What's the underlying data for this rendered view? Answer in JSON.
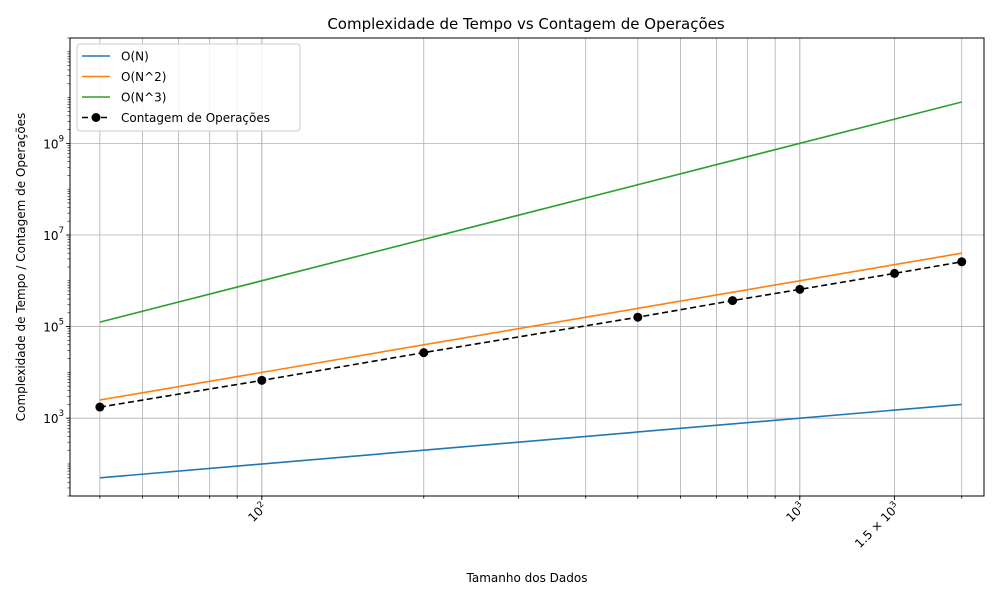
{
  "chart_data": {
    "type": "line",
    "title": "Complexidade de Tempo vs Contagem de Operações",
    "xlabel": "Tamanho dos Dados",
    "ylabel": "Complexidade de Tempo / Contagem de Operações",
    "xscale": "log",
    "yscale": "log",
    "xlim": [
      44,
      2200
    ],
    "ylim": [
      20,
      200000000000
    ],
    "grid": true,
    "legend_position": "top-left",
    "x_ticks": [
      {
        "value": 100,
        "base": "10",
        "exp": "2"
      },
      {
        "value": 1000,
        "base": "10",
        "exp": "3"
      },
      {
        "value": 1500,
        "base": "1.5 × 10",
        "exp": "3"
      }
    ],
    "y_ticks": [
      {
        "value": 1000,
        "base": "10",
        "exp": "3"
      },
      {
        "value": 100000,
        "base": "10",
        "exp": "5"
      },
      {
        "value": 10000000,
        "base": "10",
        "exp": "7"
      },
      {
        "value": 1000000000,
        "base": "10",
        "exp": "9"
      }
    ],
    "series": [
      {
        "name": "O(N)",
        "color": "#1f77b4",
        "style": "solid",
        "marker": "none",
        "x": [
          50,
          2000
        ],
        "y": [
          50,
          2000
        ]
      },
      {
        "name": "O(N^2)",
        "color": "#ff7f0e",
        "style": "solid",
        "marker": "none",
        "x": [
          50,
          2000
        ],
        "y": [
          2500,
          4000000
        ]
      },
      {
        "name": "O(N^3)",
        "color": "#2ca02c",
        "style": "solid",
        "marker": "none",
        "x": [
          50,
          2000
        ],
        "y": [
          125000,
          8000000000
        ]
      },
      {
        "name": "Contagem de Operações",
        "color": "#000000",
        "style": "dashed",
        "marker": "circle",
        "x": [
          50,
          100,
          200,
          500,
          750,
          1000,
          1500,
          2000
        ],
        "y": [
          1750,
          6700,
          27000,
          160000,
          370000,
          650000,
          1450000,
          2600000
        ]
      }
    ]
  }
}
